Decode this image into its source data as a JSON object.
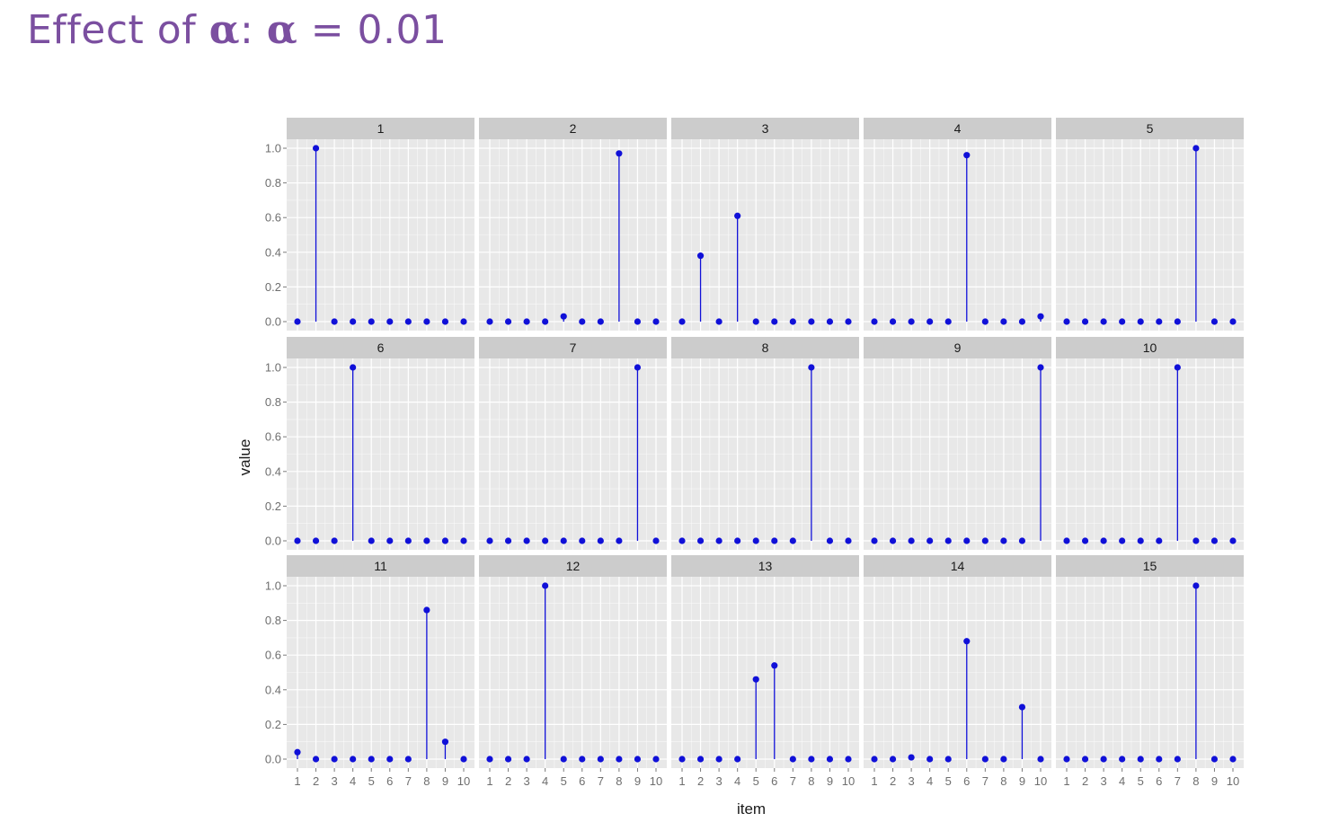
{
  "slide": {
    "title_prefix": "Effect of ",
    "alpha": "α",
    "title_middle": ": ",
    "title_suffix": " = 0.01"
  },
  "colors": {
    "title": "#7b4fa0",
    "panel_bg": "#e8e8e8",
    "strip_bg": "#cccccc",
    "grid": "#ffffff",
    "series": "#1010d8"
  },
  "chart_data": {
    "type": "scatter",
    "style": "lollipop",
    "facet_layout": {
      "rows": 3,
      "cols": 5
    },
    "xlabel": "item",
    "ylabel": "value",
    "x": [
      1,
      2,
      3,
      4,
      5,
      6,
      7,
      8,
      9,
      10
    ],
    "x_ticks": [
      "1",
      "2",
      "3",
      "4",
      "5",
      "6",
      "7",
      "8",
      "9",
      "10"
    ],
    "ylim": [
      0,
      1
    ],
    "y_ticks": [
      "0.0",
      "0.2",
      "0.4",
      "0.6",
      "0.8",
      "1.0"
    ],
    "grid": true,
    "panels": [
      {
        "label": "1",
        "values": [
          0,
          1.0,
          0,
          0,
          0,
          0,
          0,
          0,
          0,
          0
        ]
      },
      {
        "label": "2",
        "values": [
          0,
          0,
          0,
          0,
          0.03,
          0,
          0,
          0.97,
          0,
          0
        ]
      },
      {
        "label": "3",
        "values": [
          0,
          0.38,
          0,
          0.61,
          0,
          0,
          0,
          0,
          0,
          0
        ]
      },
      {
        "label": "4",
        "values": [
          0,
          0,
          0,
          0,
          0,
          0.96,
          0,
          0,
          0,
          0.03
        ]
      },
      {
        "label": "5",
        "values": [
          0,
          0,
          0,
          0,
          0,
          0,
          0,
          1.0,
          0,
          0
        ]
      },
      {
        "label": "6",
        "values": [
          0,
          0,
          0,
          1.0,
          0,
          0,
          0,
          0,
          0,
          0
        ]
      },
      {
        "label": "7",
        "values": [
          0,
          0,
          0,
          0,
          0,
          0,
          0,
          0,
          1.0,
          0
        ]
      },
      {
        "label": "8",
        "values": [
          0,
          0,
          0,
          0,
          0,
          0,
          0,
          1.0,
          0,
          0
        ]
      },
      {
        "label": "9",
        "values": [
          0,
          0,
          0,
          0,
          0,
          0,
          0,
          0,
          0,
          1.0
        ]
      },
      {
        "label": "10",
        "values": [
          0,
          0,
          0,
          0,
          0,
          0,
          1.0,
          0,
          0,
          0
        ]
      },
      {
        "label": "11",
        "values": [
          0.04,
          0,
          0,
          0,
          0,
          0,
          0,
          0.86,
          0.1,
          0
        ]
      },
      {
        "label": "12",
        "values": [
          0,
          0,
          0,
          1.0,
          0,
          0,
          0,
          0,
          0,
          0
        ]
      },
      {
        "label": "13",
        "values": [
          0,
          0,
          0,
          0,
          0.46,
          0.54,
          0,
          0,
          0,
          0
        ]
      },
      {
        "label": "14",
        "values": [
          0,
          0,
          0.01,
          0,
          0,
          0.68,
          0,
          0,
          0.3,
          0
        ]
      },
      {
        "label": "15",
        "values": [
          0,
          0,
          0,
          0,
          0,
          0,
          0,
          1.0,
          0,
          0
        ]
      }
    ]
  }
}
